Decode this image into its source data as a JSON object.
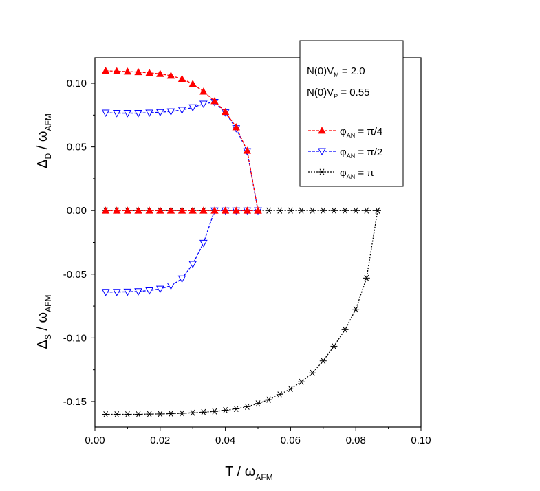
{
  "chart_data": {
    "type": "line",
    "xlabel": {
      "main": "T / ω",
      "sub": "AFM"
    },
    "ylabel_top": {
      "main": "Δ",
      "sub": "D",
      "rest": " / ω",
      "sub2": "AFM"
    },
    "ylabel_bottom": {
      "main": "Δ",
      "sub": "S",
      "rest": " / ω",
      "sub2": "AFM"
    },
    "xlim": [
      0.0,
      0.1
    ],
    "ylim": [
      -0.17,
      0.12
    ],
    "xticks": [
      "0.00",
      "0.02",
      "0.04",
      "0.06",
      "0.08",
      "0.10"
    ],
    "xtick_values": [
      0.0,
      0.02,
      0.04,
      0.06,
      0.08,
      0.1
    ],
    "yticks": [
      "-0.15",
      "-0.10",
      "-0.05",
      "0.00",
      "0.05",
      "0.10"
    ],
    "ytick_values": [
      -0.15,
      -0.1,
      -0.05,
      0.0,
      0.05,
      0.1
    ],
    "grid": false,
    "legend_position": "top-right",
    "parameters": [
      {
        "pre": "N(0)V",
        "sub": "M",
        "post": " = 2.0"
      },
      {
        "pre": "N(0)V",
        "sub": "P",
        "post": " = 0.55"
      }
    ],
    "series": [
      {
        "label": {
          "pre": "φ",
          "sub": "AN",
          "post": " =  π/4"
        },
        "color": "#ff0000",
        "marker": "triangle-up-filled",
        "line": "dash",
        "curves": [
          {
            "x": [
              0.0033,
              0.0067,
              0.01,
              0.0133,
              0.0167,
              0.02,
              0.0233,
              0.0267,
              0.03,
              0.0333,
              0.0367,
              0.04,
              0.0433,
              0.0467,
              0.05
            ],
            "y": [
              0.1098,
              0.1095,
              0.1092,
              0.1088,
              0.1082,
              0.1074,
              0.106,
              0.1035,
              0.0995,
              0.0935,
              0.086,
              0.0775,
              0.0655,
              0.047,
              0.0
            ]
          },
          {
            "x": [
              0.0033,
              0.0067,
              0.01,
              0.0133,
              0.0167,
              0.02,
              0.0233,
              0.0267,
              0.03,
              0.0333,
              0.0367,
              0.04,
              0.0433,
              0.0467,
              0.05
            ],
            "y": [
              0,
              0,
              0,
              0,
              0,
              0,
              0,
              0,
              0,
              0,
              0,
              0,
              0,
              0,
              0
            ]
          }
        ]
      },
      {
        "label": {
          "pre": "φ",
          "sub": "AN",
          "post": " =  π/2"
        },
        "color": "#0000ff",
        "marker": "triangle-down-open",
        "line": "dash",
        "curves": [
          {
            "x": [
              0.0033,
              0.0067,
              0.01,
              0.0133,
              0.0167,
              0.02,
              0.0233,
              0.0267,
              0.03,
              0.0333,
              0.0367,
              0.04,
              0.0433,
              0.0467,
              0.05
            ],
            "y": [
              0.0768,
              0.0765,
              0.0765,
              0.0765,
              0.0768,
              0.0772,
              0.0778,
              0.079,
              0.081,
              0.0838,
              0.0852,
              0.077,
              0.0645,
              0.0465,
              0.0
            ]
          },
          {
            "x": [
              0.0033,
              0.0067,
              0.01,
              0.0133,
              0.0167,
              0.02,
              0.0233,
              0.0267,
              0.03,
              0.0333,
              0.0367,
              0.04,
              0.0433,
              0.0467,
              0.05
            ],
            "y": [
              -0.064,
              -0.064,
              -0.0638,
              -0.0635,
              -0.0628,
              -0.0615,
              -0.059,
              -0.0535,
              -0.042,
              -0.0255,
              0.0,
              0.0,
              0.0,
              0.0,
              0.0
            ]
          }
        ]
      },
      {
        "label": {
          "pre": "φ",
          "sub": "AN",
          "post": " =  π"
        },
        "color": "#000000",
        "marker": "asterisk",
        "line": "dashdot",
        "curves": [
          {
            "x": [
              0.0033,
              0.0067,
              0.01,
              0.0133,
              0.0167,
              0.02,
              0.0233,
              0.0267,
              0.03,
              0.0333,
              0.0367,
              0.04,
              0.0433,
              0.0467,
              0.05,
              0.0533,
              0.0567,
              0.06,
              0.0633,
              0.0667,
              0.07,
              0.0733,
              0.0767,
              0.08,
              0.0833,
              0.0867
            ],
            "y": [
              0,
              0,
              0,
              0,
              0,
              0,
              0,
              0,
              0,
              0,
              0,
              0,
              0,
              0,
              0,
              0,
              0,
              0,
              0,
              0,
              0,
              0,
              0,
              0,
              0,
              0
            ]
          },
          {
            "x": [
              0.0033,
              0.0067,
              0.01,
              0.0133,
              0.0167,
              0.02,
              0.0233,
              0.0267,
              0.03,
              0.0333,
              0.0367,
              0.04,
              0.0433,
              0.0467,
              0.05,
              0.0533,
              0.0567,
              0.06,
              0.0633,
              0.0667,
              0.07,
              0.0733,
              0.0767,
              0.08,
              0.0833,
              0.0867
            ],
            "y": [
              -0.16,
              -0.16,
              -0.16,
              -0.16,
              -0.1598,
              -0.1597,
              -0.1595,
              -0.1592,
              -0.1588,
              -0.1583,
              -0.1577,
              -0.1568,
              -0.1557,
              -0.154,
              -0.1515,
              -0.1485,
              -0.1445,
              -0.14,
              -0.1345,
              -0.1275,
              -0.118,
              -0.1065,
              -0.0935,
              -0.0775,
              -0.053,
              0.0
            ]
          }
        ]
      }
    ]
  }
}
